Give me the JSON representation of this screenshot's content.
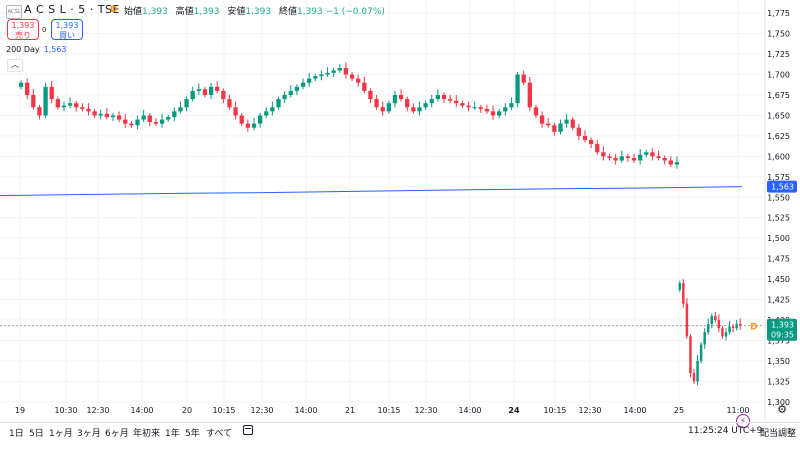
{
  "header": {
    "logo_text": "ACSL",
    "symbol": "A C S L · 5 · TSE",
    "status_dot": "D",
    "ohlc": [
      {
        "label": "始値",
        "value": "1,393"
      },
      {
        "label": "高値",
        "value": "1,393"
      },
      {
        "label": "安値",
        "value": "1,393"
      },
      {
        "label": "終値",
        "value": "1,393 −1 (−0.07%)"
      }
    ],
    "sell_price": "1,393",
    "sell_label": "売り",
    "spread": "0",
    "buy_price": "1,393",
    "buy_label": "買い",
    "ma_label": "200 Day",
    "ma_value": "1,563",
    "collapse_glyph": "︿"
  },
  "chart_data": {
    "type": "candlestick",
    "interval": "5 minutes",
    "y_axis_ticks": [
      "1,775",
      "1,750",
      "1,725",
      "1,700",
      "1,675",
      "1,650",
      "1,625",
      "1,600",
      "1,575",
      "1,550",
      "1,525",
      "1,500",
      "1,475",
      "1,450",
      "1,425",
      "1,400",
      "1,375",
      "1,350",
      "1,325",
      "1,300"
    ],
    "ylim": [
      1290,
      1785
    ],
    "x_axis_ticks": [
      "19",
      "10:30",
      "12:30",
      "14:00",
      "20",
      "10:15",
      "12:30",
      "14:00",
      "21",
      "10:15",
      "12:30",
      "14:00",
      "24",
      "10:15",
      "12:30",
      "14:00",
      "25",
      "11:00"
    ],
    "bold_tick": "24",
    "colors": {
      "up": "#089981",
      "down": "#f23645",
      "ma": "#2962ff",
      "last": "#089981"
    },
    "closes": [
      1690,
      1675,
      1660,
      1650,
      1685,
      1670,
      1660,
      1662,
      1665,
      1660,
      1658,
      1655,
      1650,
      1652,
      1648,
      1650,
      1645,
      1640,
      1638,
      1645,
      1650,
      1642,
      1640,
      1645,
      1648,
      1655,
      1660,
      1670,
      1680,
      1682,
      1675,
      1685,
      1680,
      1670,
      1660,
      1650,
      1640,
      1635,
      1640,
      1650,
      1655,
      1660,
      1670,
      1675,
      1680,
      1685,
      1690,
      1695,
      1698,
      1700,
      1702,
      1705,
      1708,
      1700,
      1695,
      1690,
      1680,
      1670,
      1660,
      1655,
      1665,
      1675,
      1670,
      1660,
      1655,
      1660,
      1665,
      1670,
      1675,
      1670,
      1668,
      1665,
      1662,
      1660,
      1660,
      1658,
      1655,
      1650,
      1655,
      1660,
      1665,
      1700,
      1690,
      1660,
      1650,
      1640,
      1638,
      1630,
      1640,
      1645,
      1635,
      1625,
      1620,
      1615,
      1605,
      1600,
      1598,
      1595,
      1600,
      1598,
      1595,
      1602,
      1605,
      1600,
      1598,
      1595,
      1590,
      1593
    ],
    "day2_closes": [
      1445,
      1420,
      1380,
      1335,
      1325,
      1350,
      1370,
      1385,
      1395,
      1405,
      1400,
      1390,
      1380,
      1385,
      1392,
      1390,
      1395,
      1393
    ],
    "moving_average_200_day": {
      "name": "200 Day",
      "start": 1552,
      "end": 1563
    },
    "last_price": "1,393",
    "last_time": "09:35",
    "last_flag": "D",
    "ma_last": "1,563"
  },
  "bottombar": {
    "ranges": [
      "1日",
      "5日",
      "1ヶ月",
      "3ヶ月",
      "6ヶ月",
      "年初来",
      "1年",
      "5年",
      "すべて"
    ],
    "clock": "11:25:24 UTC+9",
    "adjust": "配当調整"
  },
  "icons": {
    "calendar": "calendar-icon",
    "settings": "gear-icon",
    "bolt": "lightning-icon"
  }
}
